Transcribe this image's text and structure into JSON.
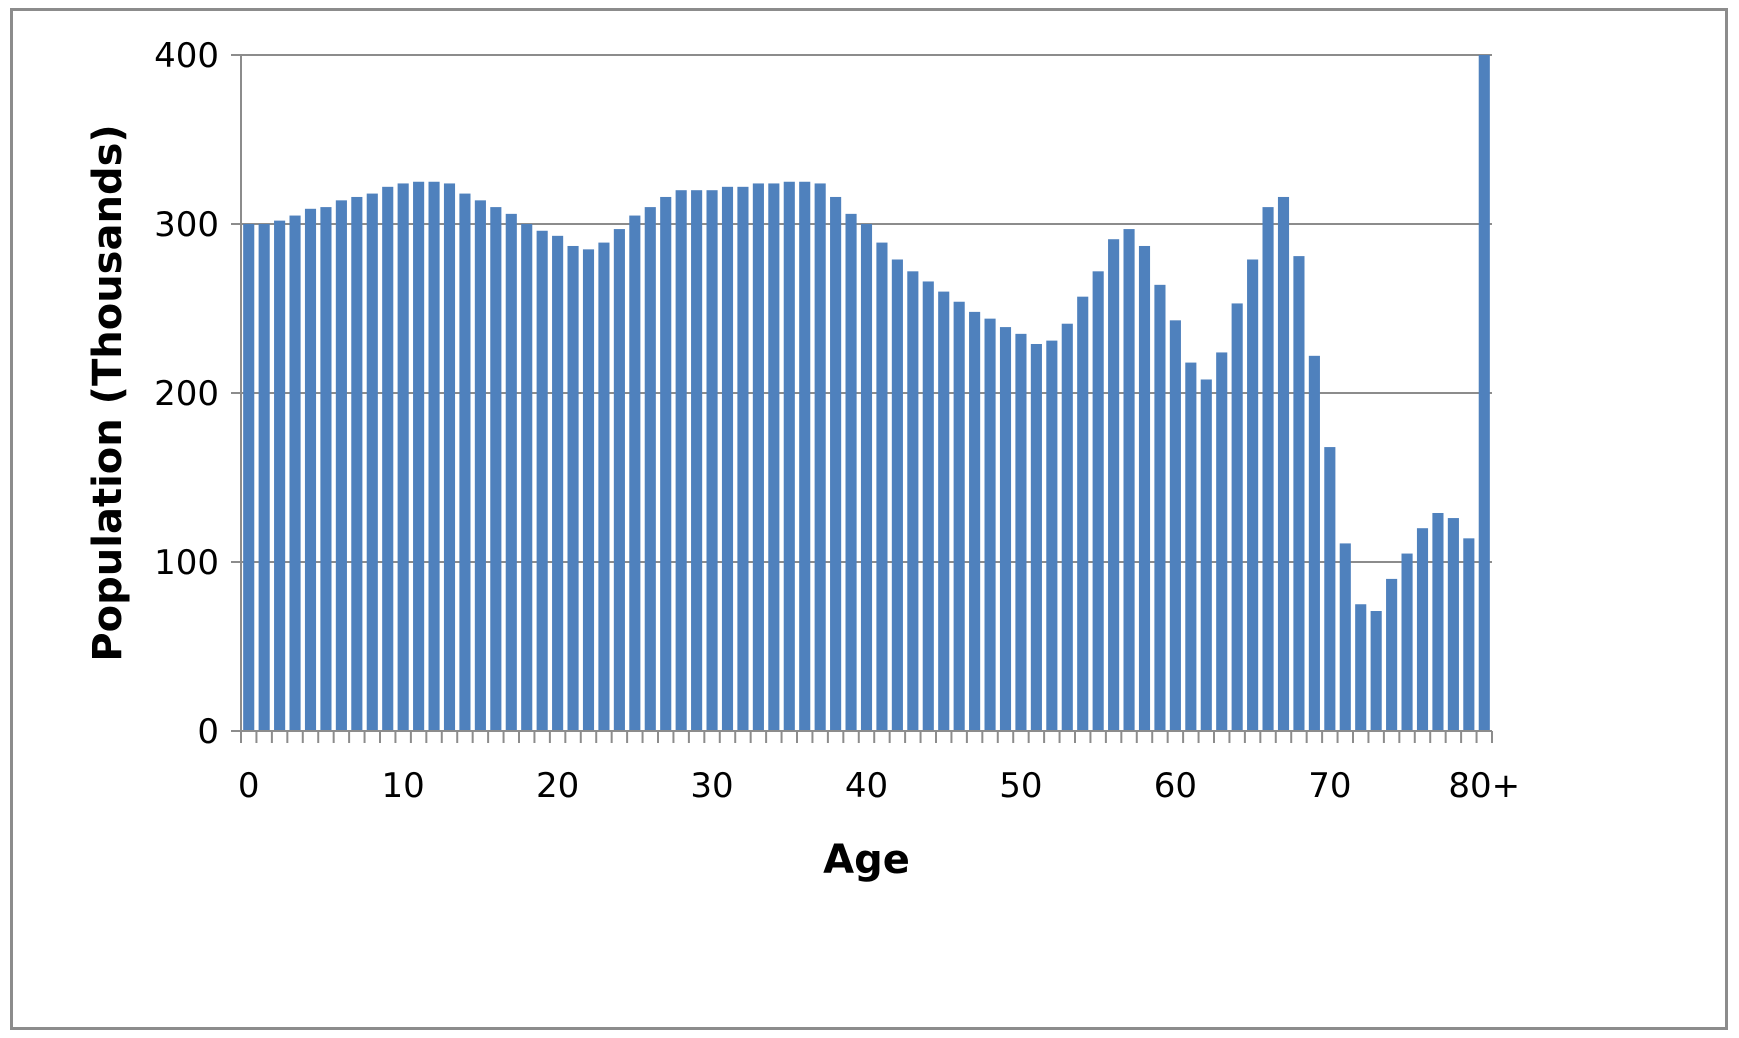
{
  "chart_data": {
    "type": "bar",
    "xlabel": "Age",
    "ylabel": "Population (Thousands)",
    "ylim": [
      0,
      400
    ],
    "yticks": [
      "0",
      "100",
      "200",
      "300",
      "400"
    ],
    "xtick_labels": [
      "0",
      "10",
      "20",
      "30",
      "40",
      "50",
      "60",
      "70",
      "80+"
    ],
    "grid": "horizontal",
    "legend": "none",
    "bar_color": "#4f81bd",
    "categories": [
      "0",
      "1",
      "2",
      "3",
      "4",
      "5",
      "6",
      "7",
      "8",
      "9",
      "10",
      "11",
      "12",
      "13",
      "14",
      "15",
      "16",
      "17",
      "18",
      "19",
      "20",
      "21",
      "22",
      "23",
      "24",
      "25",
      "26",
      "27",
      "28",
      "29",
      "30",
      "31",
      "32",
      "33",
      "34",
      "35",
      "36",
      "37",
      "38",
      "39",
      "40",
      "41",
      "42",
      "43",
      "44",
      "45",
      "46",
      "47",
      "48",
      "49",
      "50",
      "51",
      "52",
      "53",
      "54",
      "55",
      "56",
      "57",
      "58",
      "59",
      "60",
      "61",
      "62",
      "63",
      "64",
      "65",
      "66",
      "67",
      "68",
      "69",
      "70",
      "71",
      "72",
      "73",
      "74",
      "75",
      "76",
      "77",
      "78",
      "79",
      "80+"
    ],
    "values": [
      300,
      300,
      302,
      305,
      309,
      310,
      314,
      316,
      318,
      322,
      324,
      325,
      325,
      324,
      318,
      314,
      310,
      306,
      300,
      296,
      293,
      287,
      285,
      289,
      297,
      305,
      310,
      316,
      320,
      320,
      320,
      322,
      322,
      324,
      324,
      325,
      325,
      324,
      316,
      306,
      300,
      289,
      279,
      272,
      266,
      260,
      254,
      248,
      244,
      239,
      235,
      229,
      231,
      241,
      257,
      272,
      291,
      297,
      287,
      264,
      243,
      218,
      208,
      224,
      253,
      279,
      310,
      316,
      281,
      222,
      168,
      111,
      75,
      71,
      90,
      105,
      120,
      129,
      126,
      114,
      400
    ]
  }
}
